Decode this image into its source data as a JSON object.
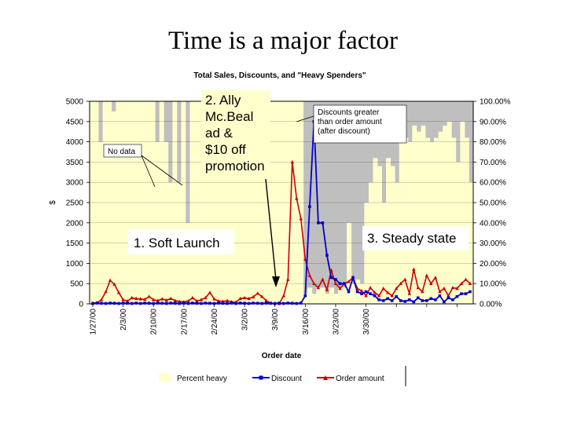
{
  "slide_title": "Time is a major factor",
  "chart_data": {
    "type": "line",
    "title": "Total Sales, Discounts, and \"Heavy Spenders\"",
    "xlabel": "Order date",
    "ylabel": "$",
    "ylim": [
      0,
      5000
    ],
    "y2lim": [
      0,
      1
    ],
    "y_ticks": [
      0,
      500,
      1000,
      1500,
      2000,
      2500,
      3000,
      3500,
      4000,
      4500,
      5000
    ],
    "y2_ticks": [
      "0.00%",
      "10.00%",
      "20.00%",
      "30.00%",
      "40.00%",
      "50.00%",
      "60.00%",
      "70.00%",
      "80.00%",
      "90.00%",
      "100.00%"
    ],
    "x_tick_labels": [
      "1/27/00",
      "2/3/00",
      "2/10/00",
      "2/17/00",
      "2/24/00",
      "3/2/00",
      "3/9/00",
      "3/16/00",
      "3/23/00",
      "3/30/00"
    ],
    "legend_placement": "bottom",
    "grid": true,
    "colors": {
      "percent_heavy": "#ffffcc",
      "plot_background": "#bfbfbf",
      "discount": "#0000cc",
      "order_amount": "#cc0000"
    },
    "series": [
      {
        "name": "Percent heavy",
        "axis": "right",
        "type": "area",
        "values": [
          1,
          1,
          0.8,
          1,
          1,
          0.95,
          1,
          1,
          1,
          1,
          1,
          1,
          1,
          1,
          1,
          0.8,
          1,
          0.8,
          0.6,
          1,
          0.6,
          1,
          0.4,
          1,
          1,
          1,
          1,
          1,
          1,
          1,
          1,
          1,
          1,
          1,
          1,
          1,
          1,
          1,
          1,
          1,
          1,
          1,
          1,
          1,
          1,
          1,
          1,
          1,
          1,
          0.05,
          0.08,
          0.05,
          0.08,
          0.08,
          0.05,
          0.08,
          0.05,
          0.08,
          0.08,
          0.4,
          0.1,
          0.12,
          0.1,
          0.5,
          0.6,
          0.72,
          0.68,
          0.5,
          0.72,
          0.68,
          0.6,
          0.8,
          0.82,
          0.8,
          0.88,
          0.85,
          0.88,
          0.82,
          0.8,
          0.82,
          0.85,
          0.88,
          0.9,
          0.82,
          0.7,
          0.9,
          0.82,
          0.6
        ]
      },
      {
        "name": "Discount",
        "axis": "left",
        "values": [
          10,
          20,
          15,
          10,
          20,
          15,
          10,
          20,
          15,
          10,
          20,
          10,
          20,
          15,
          10,
          20,
          15,
          10,
          20,
          15,
          10,
          20,
          10,
          20,
          15,
          10,
          20,
          15,
          10,
          20,
          15,
          10,
          20,
          10,
          20,
          15,
          10,
          20,
          15,
          10,
          20,
          15,
          10,
          20,
          10,
          20,
          15,
          10,
          20,
          200,
          2400,
          4500,
          2000,
          2000,
          1200,
          650,
          600,
          500,
          500,
          300,
          650,
          300,
          250,
          300,
          250,
          200,
          100,
          80,
          130,
          80,
          180,
          80,
          60,
          100,
          50,
          150,
          80,
          80,
          130,
          100,
          200,
          50,
          150,
          100,
          180,
          250,
          250,
          300
        ]
      },
      {
        "name": "Order amount",
        "axis": "left",
        "values": [
          20,
          30,
          100,
          300,
          580,
          480,
          280,
          100,
          70,
          150,
          130,
          120,
          110,
          180,
          100,
          80,
          120,
          90,
          130,
          80,
          60,
          50,
          70,
          150,
          70,
          100,
          150,
          280,
          120,
          70,
          60,
          80,
          50,
          40,
          130,
          150,
          130,
          170,
          260,
          180,
          80,
          20,
          5,
          5,
          200,
          600,
          3500,
          2600,
          2100,
          1100,
          700,
          500,
          400,
          600,
          350,
          830,
          500,
          380,
          500,
          550,
          650,
          380,
          320,
          200,
          400,
          280,
          200,
          380,
          280,
          200,
          380,
          500,
          600,
          250,
          850,
          400,
          300,
          700,
          500,
          650,
          300,
          380,
          200,
          400,
          380,
          500,
          600,
          500
        ]
      }
    ],
    "annotations": [
      "No data",
      "2. Ally Mc.Beal ad & $10 off promotion",
      "Discounts greater than order amount (after discount)",
      "1. Soft Launch",
      "3. Steady state"
    ]
  }
}
